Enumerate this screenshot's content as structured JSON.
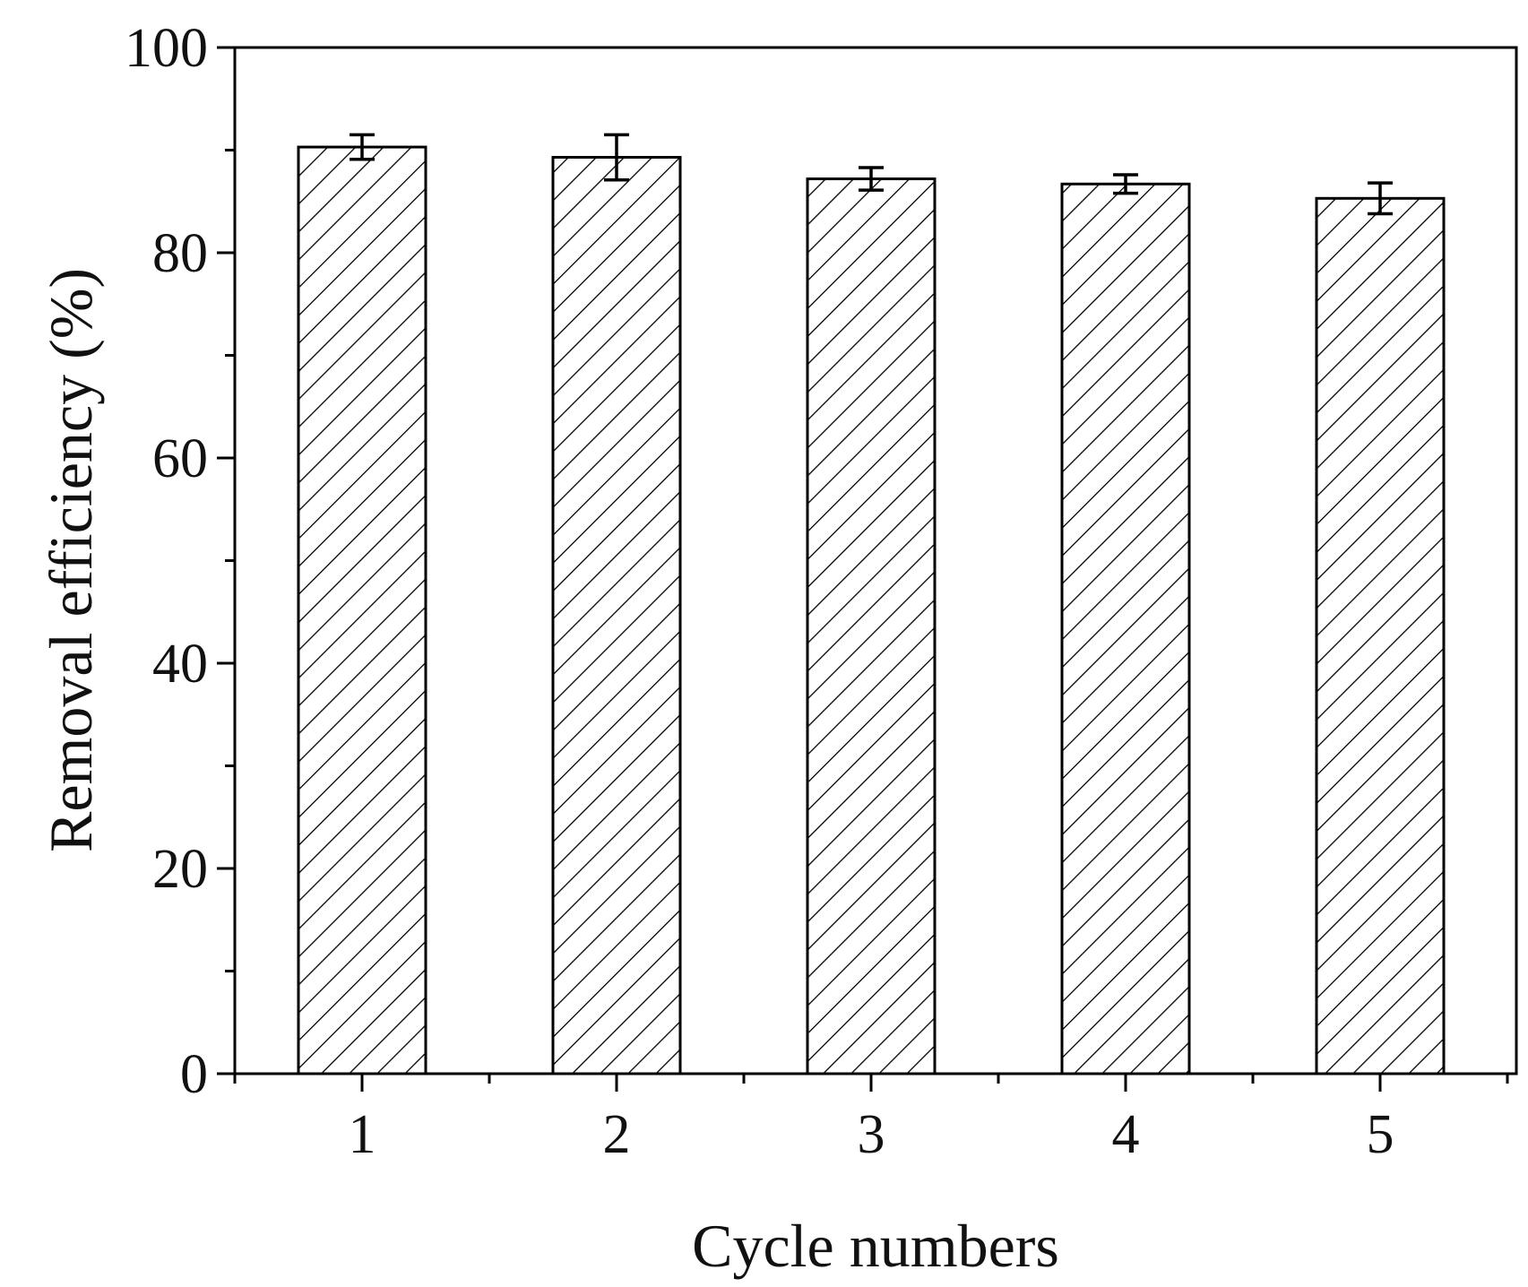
{
  "chart_data": {
    "type": "bar",
    "title": "",
    "xlabel": "Cycle numbers",
    "ylabel": "Removal efficiency (%)",
    "categories": [
      "1",
      "2",
      "3",
      "4",
      "5"
    ],
    "values": [
      90.3,
      89.3,
      87.2,
      86.7,
      85.3
    ],
    "errors": [
      1.2,
      2.2,
      1.1,
      0.9,
      1.5
    ],
    "ylim": [
      0,
      100
    ],
    "yticks": [
      "0",
      "20",
      "40",
      "60",
      "80",
      "100"
    ],
    "grid": false,
    "legend": "none",
    "bar_fill": "hatched",
    "colors": {
      "bar_stroke": "#000000",
      "hatch": "#000000",
      "background": "#ffffff"
    }
  }
}
